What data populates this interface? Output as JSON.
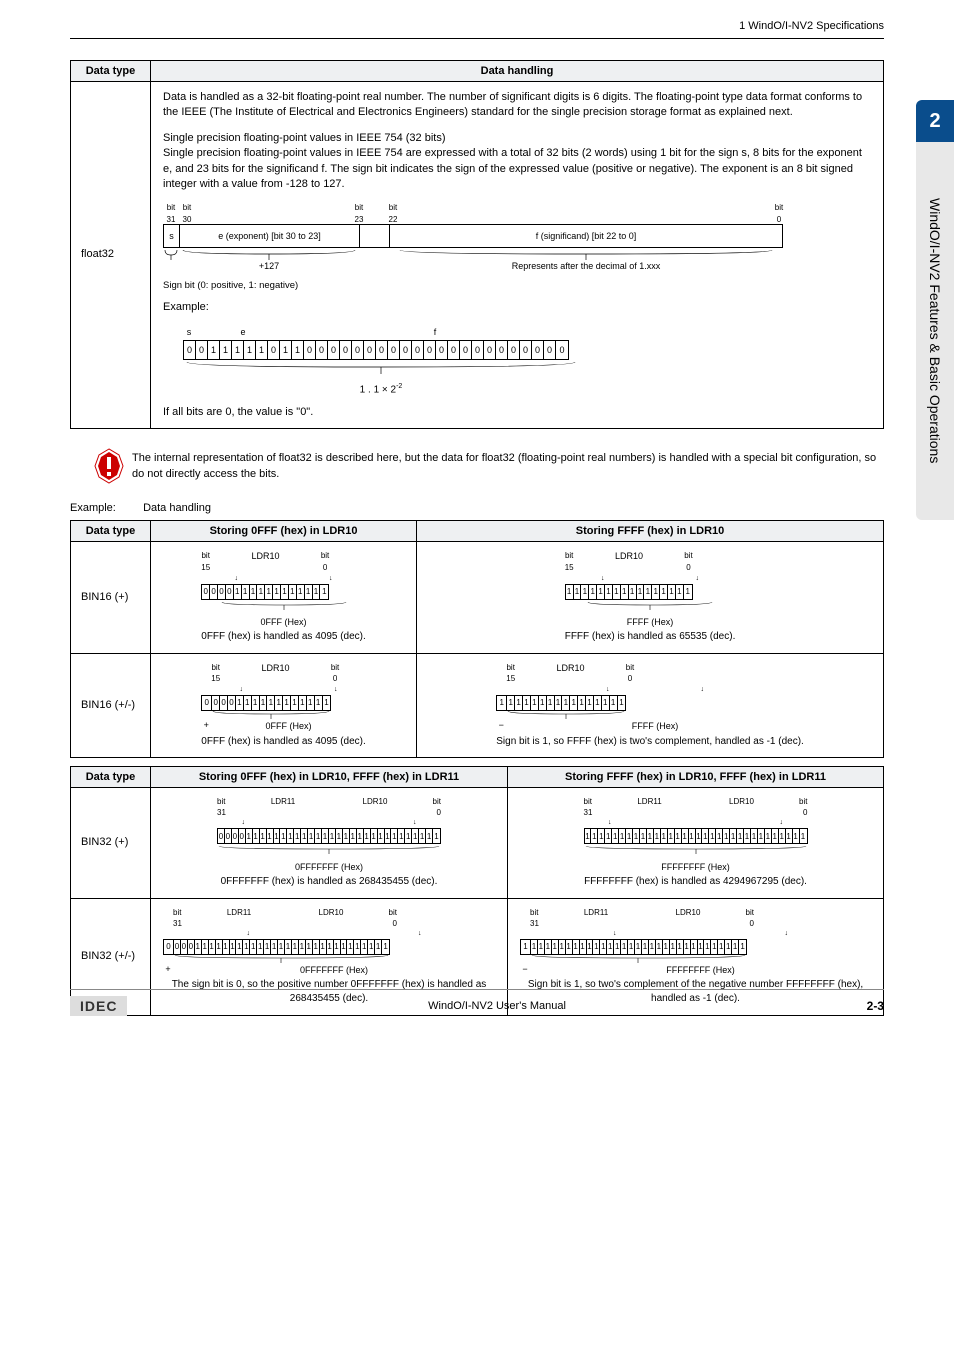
{
  "header": {
    "section": "1 WindO/I-NV2 Specifications"
  },
  "sidetab": {
    "num": "2",
    "text": "WindO/I-NV2 Features & Basic Operations"
  },
  "table1": {
    "col_datatype": "Data type",
    "col_handling": "Data handling",
    "row_label": "float32",
    "para1": "Data is handled as a 32-bit floating-point real number. The number of significant digits is 6 digits. The floating-point type data format conforms to the IEEE (The Institute of Electrical and Electronics Engineers) standard for the single precision storage format as explained next.",
    "para2_title": "Single precision floating-point values in IEEE 754 (32 bits)",
    "para2": "Single precision floating-point values in IEEE 754 are expressed with a total of 32 bits (2 words) using 1 bit for the sign s, 8 bits for the exponent e, and 23 bits for the significand f. The sign bit indicates the sign of the expressed value (positive or negative). The exponent is an 8 bit signed integer with a value from -128 to 127.",
    "bit31": "bit\n31",
    "bit30": "bit\n30",
    "bit23": "bit\n23",
    "bit22": "bit\n22",
    "bit0": "bit\n0",
    "box_s": "s",
    "box_e": "e (exponent) [bit 30 to 23]",
    "box_f": "f (significand) [bit 22 to 0]",
    "under_e": "+127",
    "under_f": "Represents after the decimal of 1.xxx",
    "sign_note": "Sign bit (0: positive, 1: negative)",
    "example_label": "Example:",
    "ex_s": "s",
    "ex_e": "e",
    "ex_f": "f",
    "ex_bits": [
      "0",
      "0",
      "1",
      "1",
      "1",
      "1",
      "1",
      "0",
      "1",
      "1",
      "0",
      "0",
      "0",
      "0",
      "0",
      "0",
      "0",
      "0",
      "0",
      "0",
      "0",
      "0",
      "0",
      "0",
      "0",
      "0",
      "0",
      "0",
      "0",
      "0",
      "0",
      "0"
    ],
    "ex_under_a": "1 . 1 × 2",
    "ex_under_exp": "-2",
    "last_line": "If all bits are 0, the value is \"0\"."
  },
  "warning": {
    "text": "The internal representation of float32 is described here, but the data for float32 (floating-point real numbers) is handled with a special bit configuration, so do not directly access the bits."
  },
  "example_heading": {
    "label": "Example:",
    "value": "Data handling"
  },
  "table2": {
    "col_datatype": "Data type",
    "col_a": "Storing 0FFF (hex) in LDR10",
    "col_b": "Storing FFFF (hex) in LDR10",
    "row1_label": "BIN16 (+)",
    "row2_label": "BIN16 (+/-)",
    "reg_name": "LDR10",
    "bit15": "bit\n15",
    "bit0": "bit\n0",
    "r1a_bits": [
      "0",
      "0",
      "0",
      "0",
      "1",
      "1",
      "1",
      "1",
      "1",
      "1",
      "1",
      "1",
      "1",
      "1",
      "1",
      "1"
    ],
    "r1a_hex": "0FFF (Hex)",
    "r1a_note": "0FFF (hex) is handled as 4095 (dec).",
    "r1b_bits": [
      "1",
      "1",
      "1",
      "1",
      "1",
      "1",
      "1",
      "1",
      "1",
      "1",
      "1",
      "1",
      "1",
      "1",
      "1",
      "1"
    ],
    "r1b_hex": "FFFF (Hex)",
    "r1b_note": "FFFF (hex) is handled as 65535 (dec).",
    "r2a_sign": "0",
    "r2a_bits": [
      "0",
      "0",
      "0",
      "1",
      "1",
      "1",
      "1",
      "1",
      "1",
      "1",
      "1",
      "1",
      "1",
      "1",
      "1"
    ],
    "r2a_hex": "0FFF (Hex)",
    "r2a_pm": "+",
    "r2a_note": "0FFF (hex) is handled as 4095 (dec).",
    "r2b_sign": "1",
    "r2b_bits": [
      "1",
      "1",
      "1",
      "1",
      "1",
      "1",
      "1",
      "1",
      "1",
      "1",
      "1",
      "1",
      "1",
      "1",
      "1"
    ],
    "r2b_hex": "FFFF (Hex)",
    "r2b_pm": "−",
    "r2b_note": "Sign bit is 1, so FFFF (hex) is two's complement, handled as -1 (dec)."
  },
  "table3": {
    "col_datatype": "Data type",
    "col_a": "Storing 0FFF (hex) in LDR10, FFFF (hex) in LDR11",
    "col_b": "Storing FFFF (hex) in LDR10, FFFF (hex) in LDR11",
    "row1_label": "BIN32 (+)",
    "row2_label": "BIN32 (+/-)",
    "reg11": "LDR11",
    "reg10": "LDR10",
    "bit31": "bit\n31",
    "bit0": "bit\n0",
    "r1a_bits": [
      "0",
      "0",
      "0",
      "0",
      "1",
      "1",
      "1",
      "1",
      "1",
      "1",
      "1",
      "1",
      "1",
      "1",
      "1",
      "1",
      "1",
      "1",
      "1",
      "1",
      "1",
      "1",
      "1",
      "1",
      "1",
      "1",
      "1",
      "1",
      "1",
      "1",
      "1",
      "1"
    ],
    "r1a_hex": "0FFFFFFF (Hex)",
    "r1a_note": "0FFFFFFF (hex) is handled as 268435455 (dec).",
    "r1b_bits": [
      "1",
      "1",
      "1",
      "1",
      "1",
      "1",
      "1",
      "1",
      "1",
      "1",
      "1",
      "1",
      "1",
      "1",
      "1",
      "1",
      "1",
      "1",
      "1",
      "1",
      "1",
      "1",
      "1",
      "1",
      "1",
      "1",
      "1",
      "1",
      "1",
      "1",
      "1",
      "1"
    ],
    "r1b_hex": "FFFFFFFF (Hex)",
    "r1b_note": "FFFFFFFF (hex) is handled as 4294967295 (dec).",
    "r2a_sign": "0",
    "r2a_bits": [
      "0",
      "0",
      "0",
      "1",
      "1",
      "1",
      "1",
      "1",
      "1",
      "1",
      "1",
      "1",
      "1",
      "1",
      "1",
      "1",
      "1",
      "1",
      "1",
      "1",
      "1",
      "1",
      "1",
      "1",
      "1",
      "1",
      "1",
      "1",
      "1",
      "1",
      "1"
    ],
    "r2a_hex": "0FFFFFFF (Hex)",
    "r2a_pm": "+",
    "r2a_note": "The sign bit is 0, so the positive number 0FFFFFFF (hex) is handled as 268435455 (dec).",
    "r2b_sign": "1",
    "r2b_bits": [
      "1",
      "1",
      "1",
      "1",
      "1",
      "1",
      "1",
      "1",
      "1",
      "1",
      "1",
      "1",
      "1",
      "1",
      "1",
      "1",
      "1",
      "1",
      "1",
      "1",
      "1",
      "1",
      "1",
      "1",
      "1",
      "1",
      "1",
      "1",
      "1",
      "1",
      "1"
    ],
    "r2b_hex": "FFFFFFFF (Hex)",
    "r2b_pm": "−",
    "r2b_note": "Sign bit is 1, so two's complement of the negative number FFFFFFFF (hex), handled as -1 (dec)."
  },
  "footer": {
    "logo": "IDEC",
    "center": "WindO/I-NV2 User's Manual",
    "page": "2-3"
  }
}
